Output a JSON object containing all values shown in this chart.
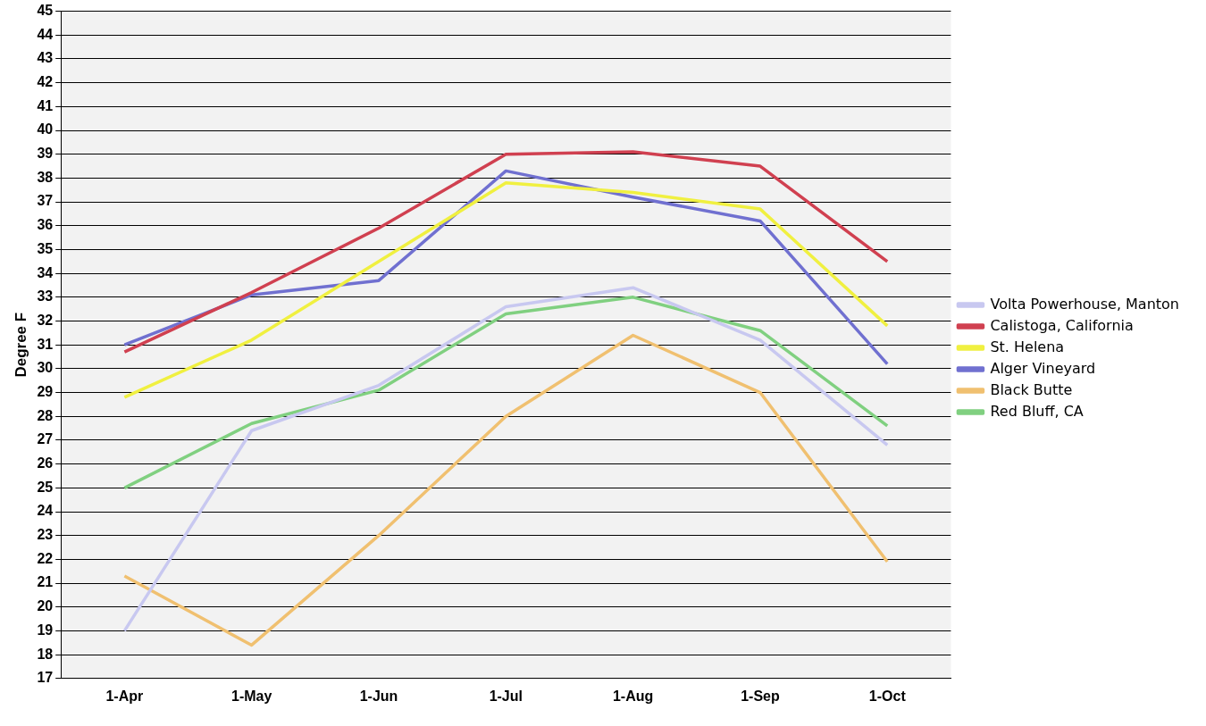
{
  "chart_data": {
    "type": "line",
    "ylabel": "Degree F",
    "categories": [
      "1-Apr",
      "1-May",
      "1-Jun",
      "1-Jul",
      "1-Aug",
      "1-Sep",
      "1-Oct"
    ],
    "ylim": [
      17,
      45
    ],
    "yticks": [
      17,
      18,
      19,
      20,
      21,
      22,
      23,
      24,
      25,
      26,
      27,
      28,
      29,
      30,
      31,
      32,
      33,
      34,
      35,
      36,
      37,
      38,
      39,
      40,
      41,
      42,
      43,
      44,
      45
    ],
    "grid": "y",
    "legend": "right",
    "marker": "none",
    "line_style": "solid",
    "series": [
      {
        "name": "Volta Powerhouse, Manton",
        "color": "#c8c8f0",
        "values": [
          19.0,
          27.4,
          29.3,
          32.6,
          33.4,
          31.2,
          26.8
        ]
      },
      {
        "name": "Calistoga, California",
        "color": "#d04050",
        "values": [
          30.7,
          33.2,
          35.9,
          39.0,
          39.1,
          38.5,
          34.5
        ]
      },
      {
        "name": "St. Helena",
        "color": "#f0f040",
        "values": [
          28.8,
          31.2,
          34.5,
          37.8,
          37.4,
          36.7,
          31.8
        ]
      },
      {
        "name": "Alger Vineyard",
        "color": "#7070d0",
        "values": [
          31.0,
          33.1,
          33.7,
          38.3,
          37.2,
          36.2,
          30.2
        ]
      },
      {
        "name": "Black Butte",
        "color": "#f0c070",
        "values": [
          21.3,
          18.4,
          23.0,
          28.0,
          31.4,
          29.0,
          21.9
        ]
      },
      {
        "name": "Red Bluff, CA",
        "color": "#80d080",
        "values": [
          25.0,
          27.7,
          29.1,
          32.3,
          33.0,
          31.6,
          27.6
        ]
      }
    ]
  }
}
